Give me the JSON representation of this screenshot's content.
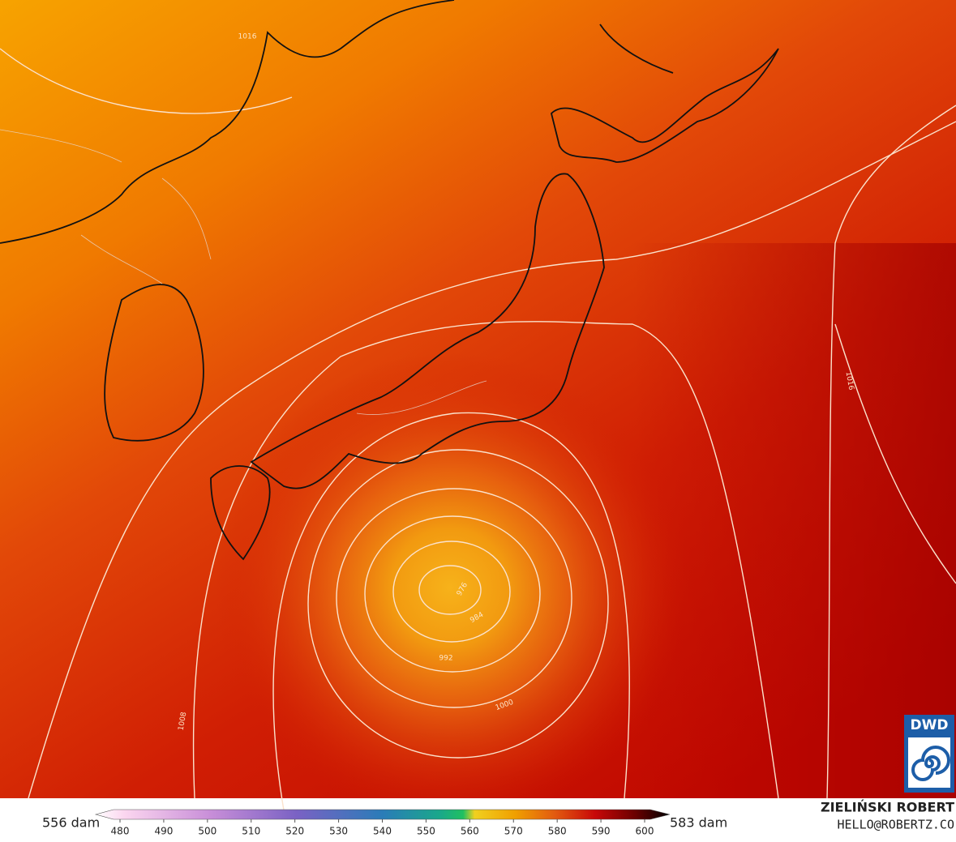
{
  "map": {
    "contour_labels": [
      "1016",
      "1016",
      "1008",
      "1000",
      "992",
      "984",
      "976"
    ],
    "colorbar": {
      "min_label": "556 dam",
      "max_label": "583 dam",
      "ticks": [
        480,
        490,
        500,
        510,
        520,
        530,
        540,
        550,
        560,
        570,
        580,
        590,
        600
      ]
    }
  },
  "logo": "DWD",
  "credit": {
    "name": "ZIELIŃSKI ROBERT",
    "contact": "HELLO@ROBERTZ.CO"
  }
}
